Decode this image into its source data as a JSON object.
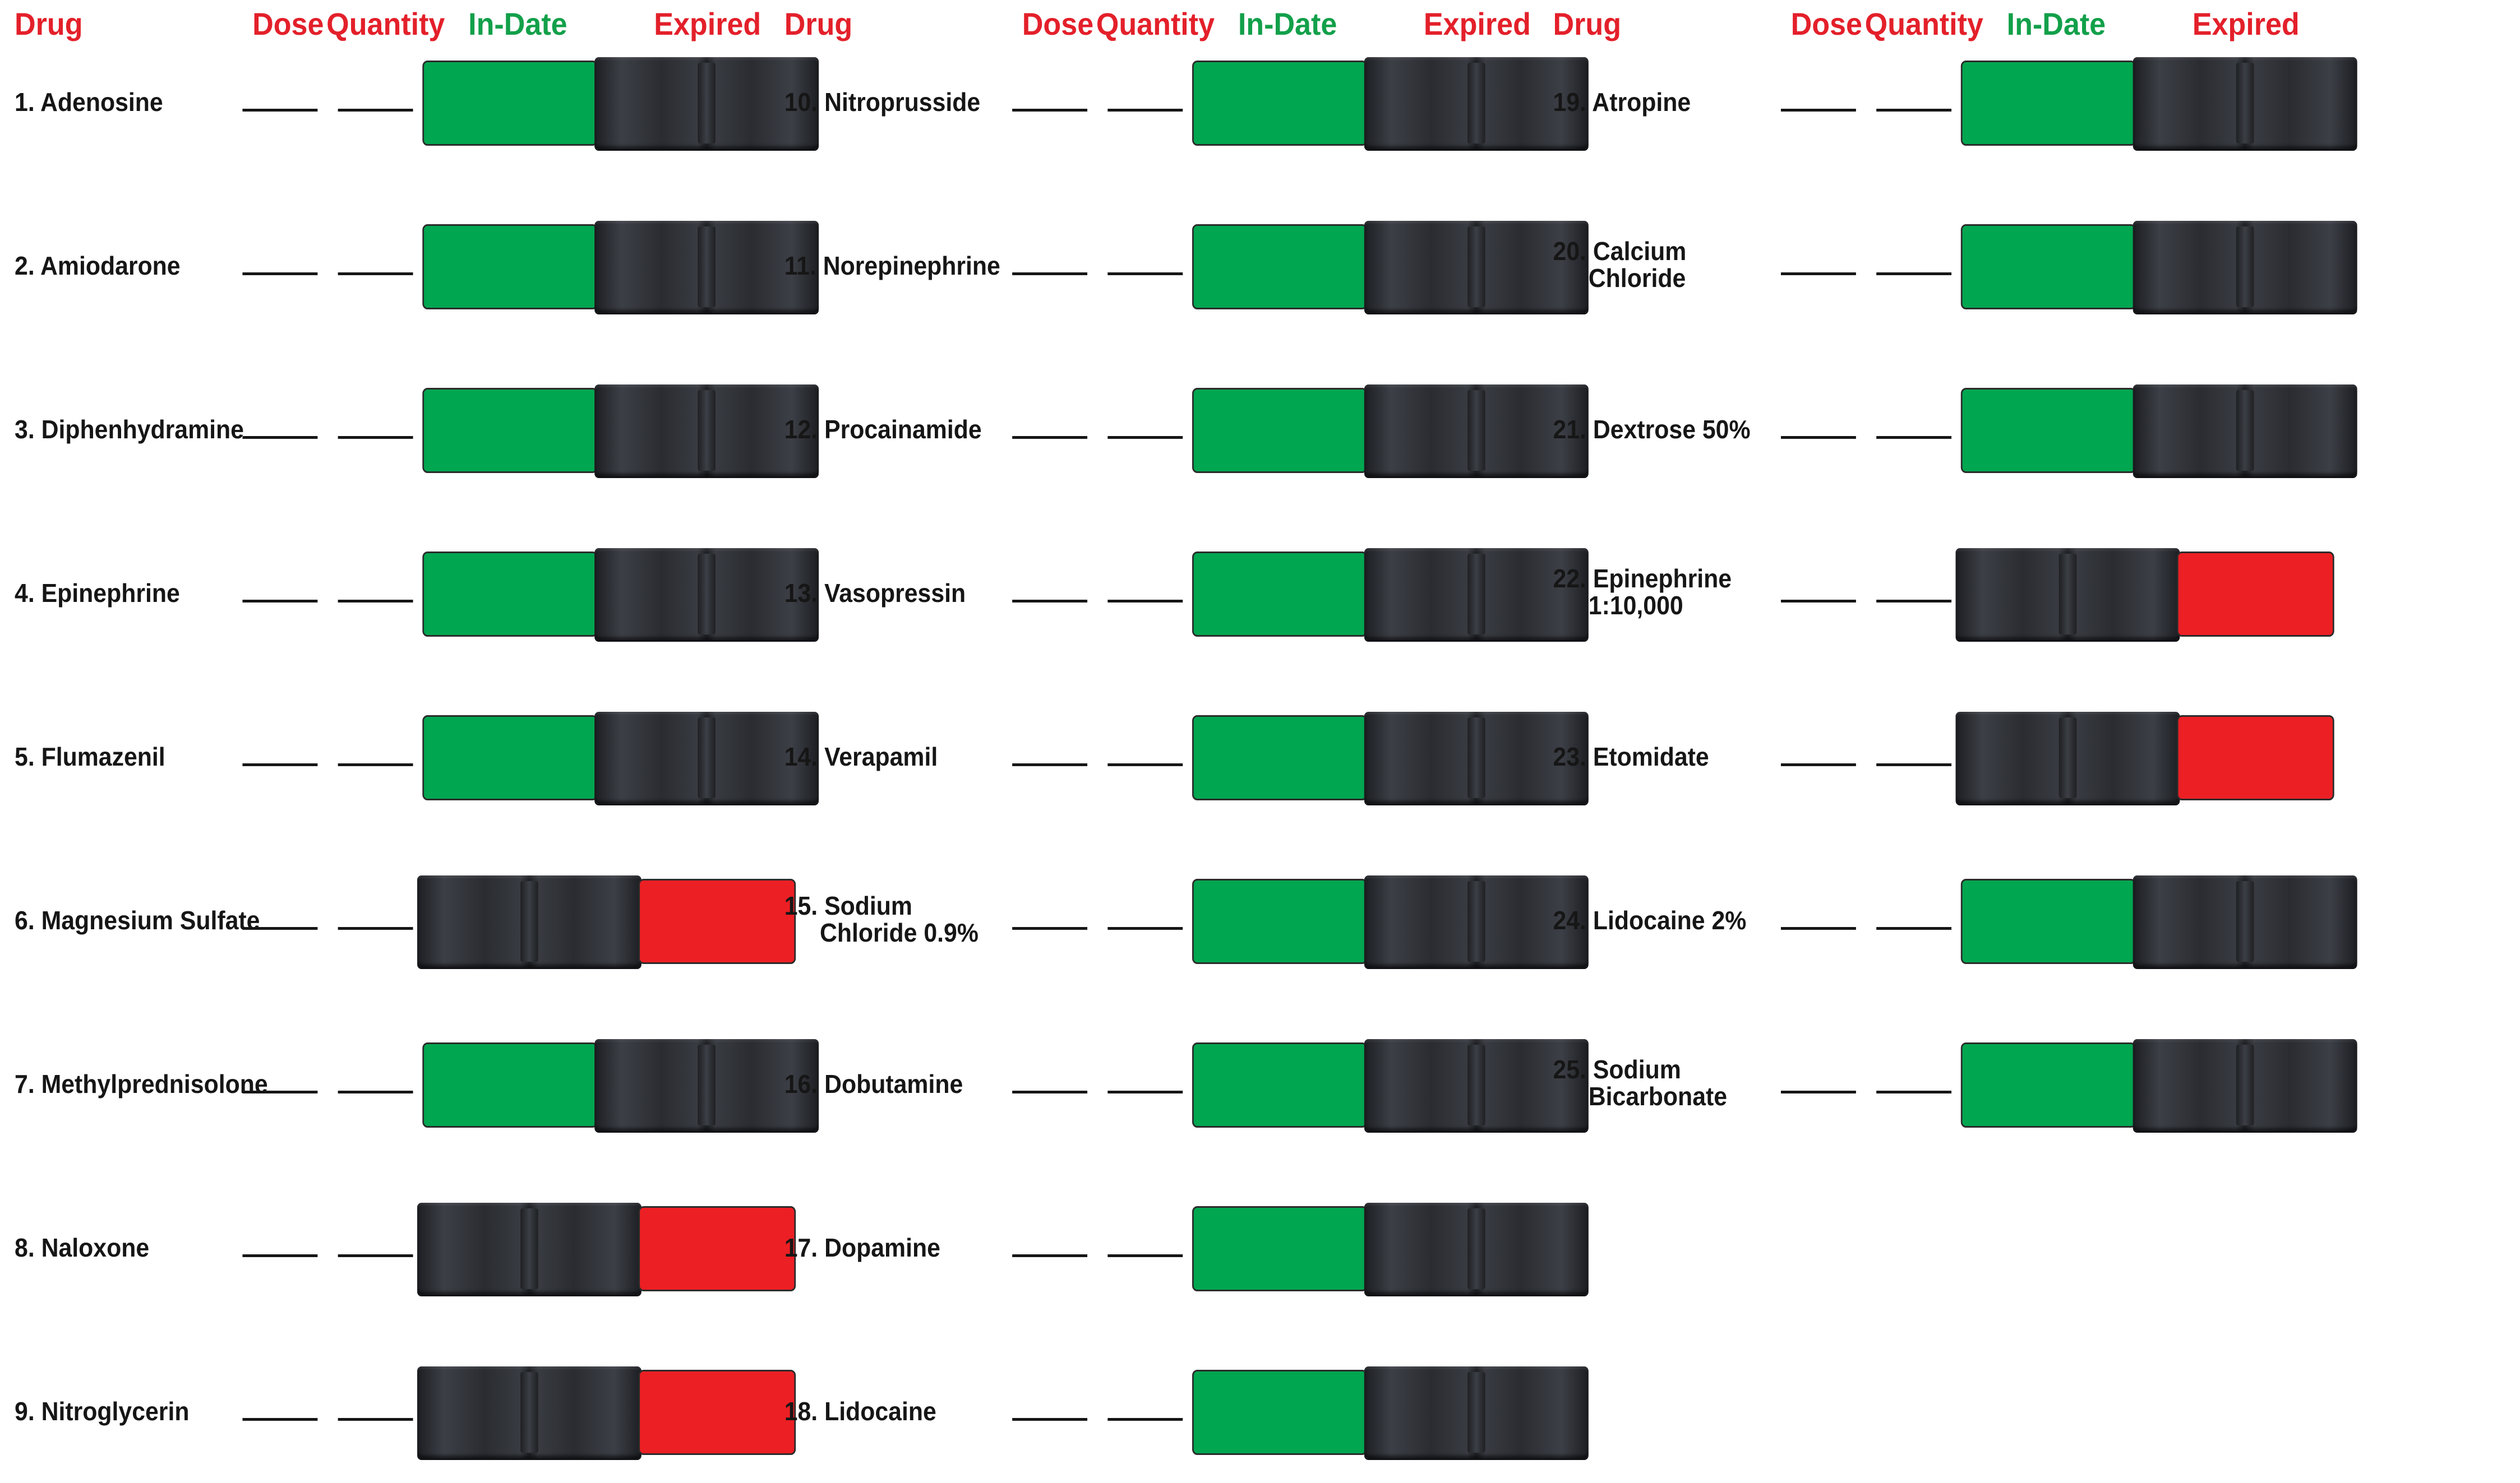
{
  "headers": {
    "drug": "Drug",
    "dose": "Dose",
    "quantity": "Quantity",
    "in_date": "In-Date",
    "expired": "Expired"
  },
  "colors": {
    "header_red": "#e3202a",
    "header_green": "#12a04a",
    "in_date_pad": "#00a650",
    "expired_pad": "#ec1f24",
    "slider": "#2f3238"
  },
  "columns": [
    {
      "drugs": [
        {
          "label": [
            "1. Adenosine"
          ],
          "status": "in-date"
        },
        {
          "label": [
            "2. Amiodarone"
          ],
          "status": "in-date"
        },
        {
          "label": [
            "3. Diphenhydramine"
          ],
          "status": "in-date"
        },
        {
          "label": [
            "4. Epinephrine"
          ],
          "status": "in-date"
        },
        {
          "label": [
            "5. Flumazenil"
          ],
          "status": "in-date"
        },
        {
          "label": [
            "6. Magnesium Sulfate"
          ],
          "status": "expired"
        },
        {
          "label": [
            "7. Methylprednisolone"
          ],
          "status": "in-date"
        },
        {
          "label": [
            "8. Naloxone"
          ],
          "status": "expired"
        },
        {
          "label": [
            "9. Nitroglycerin"
          ],
          "status": "expired"
        }
      ]
    },
    {
      "drugs": [
        {
          "label": [
            "10. Nitroprusside"
          ],
          "status": "in-date"
        },
        {
          "label": [
            "11. Norepinephrine"
          ],
          "status": "in-date"
        },
        {
          "label": [
            "12. Procainamide"
          ],
          "status": "in-date"
        },
        {
          "label": [
            "13. Vasopressin"
          ],
          "status": "in-date"
        },
        {
          "label": [
            "14. Verapamil"
          ],
          "status": "in-date"
        },
        {
          "label": [
            "15. Sodium",
            "Chloride 0.9%"
          ],
          "status": "in-date"
        },
        {
          "label": [
            "16. Dobutamine"
          ],
          "status": "in-date"
        },
        {
          "label": [
            "17. Dopamine"
          ],
          "status": "in-date"
        },
        {
          "label": [
            "18. Lidocaine"
          ],
          "status": "in-date"
        }
      ]
    },
    {
      "drugs": [
        {
          "label": [
            "19. Atropine"
          ],
          "status": "in-date"
        },
        {
          "label": [
            "20. Calcium",
            "Chloride"
          ],
          "status": "in-date"
        },
        {
          "label": [
            "21. Dextrose 50%"
          ],
          "status": "in-date"
        },
        {
          "label": [
            "22. Epinephrine",
            "1:10,000"
          ],
          "status": "expired"
        },
        {
          "label": [
            "23. Etomidate"
          ],
          "status": "expired"
        },
        {
          "label": [
            "24. Lidocaine 2%"
          ],
          "status": "in-date"
        },
        {
          "label": [
            "25. Sodium",
            "Bicarbonate"
          ],
          "status": "in-date"
        }
      ]
    }
  ]
}
